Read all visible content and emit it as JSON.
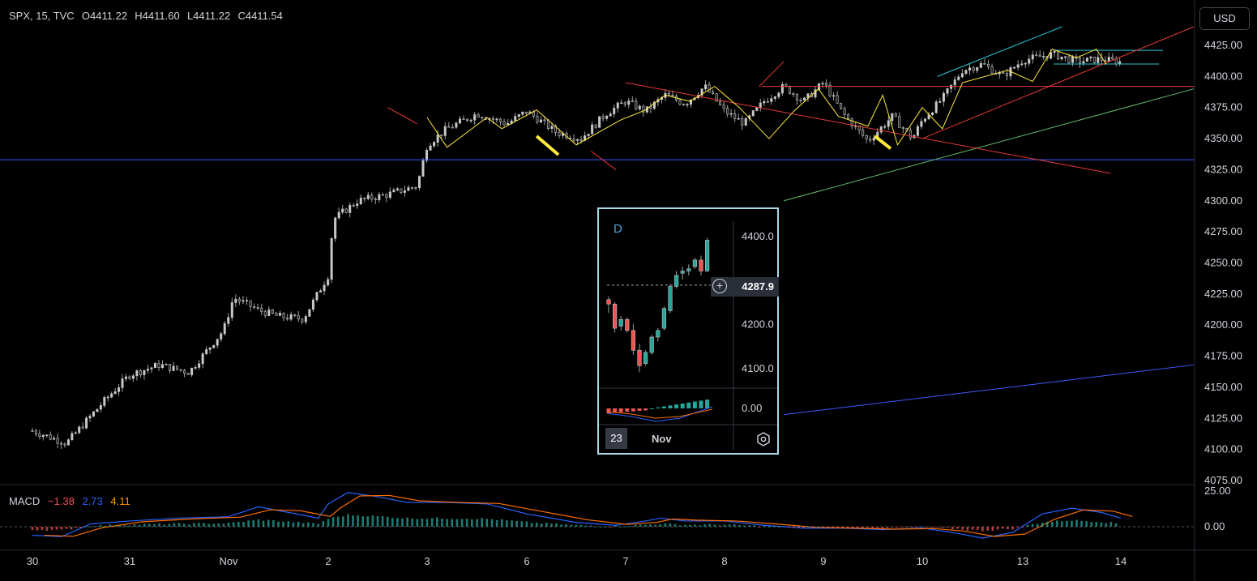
{
  "legend": {
    "symbol": "SPX, 15, TVC",
    "open": "O4411.22",
    "high": "H4411.60",
    "low": "L4411.22",
    "close": "C4411.54"
  },
  "currency_button": "USD",
  "macd_legend": {
    "name": "MACD",
    "hist": "−1.38",
    "macd": "2.73",
    "signal": "4.11"
  },
  "colors": {
    "bull": "#26a69a",
    "bear": "#ef5350",
    "candle_body_up": "#c8c8c8",
    "candle_body_down": "#202020",
    "cyan_line": "#26c6da",
    "yellow_line": "#ffeb3b",
    "red_line": "#e53935",
    "green_line": "#66bb6a",
    "blue_line": "#3d5afe",
    "macd_line": "#2962ff",
    "signal_line": "#ff6d00",
    "inset_border": "#a8dbe8"
  },
  "chart_data": [
    {
      "type": "candlestick",
      "price_axis_ticks": [
        "4425.00",
        "4400.00",
        "4375.00",
        "4350.00",
        "4325.00",
        "4300.00",
        "4275.00",
        "4250.00",
        "4225.00",
        "4200.00",
        "4175.00",
        "4150.00",
        "4125.00",
        "4100.00",
        "4075.00"
      ],
      "time_axis_ticks": [
        "30",
        "31",
        "Nov",
        "2",
        "3",
        "6",
        "7",
        "8",
        "9",
        "10",
        "13",
        "14"
      ],
      "ylim": [
        4075,
        4440
      ],
      "close_path": [
        {
          "t": 0.0,
          "p": 4115
        },
        {
          "t": 0.35,
          "p": 4105
        },
        {
          "t": 0.75,
          "p": 4140
        },
        {
          "t": 1.0,
          "p": 4160
        },
        {
          "t": 1.3,
          "p": 4168
        },
        {
          "t": 1.6,
          "p": 4162
        },
        {
          "t": 1.95,
          "p": 4196
        },
        {
          "t": 2.05,
          "p": 4222
        },
        {
          "t": 2.3,
          "p": 4212
        },
        {
          "t": 2.5,
          "p": 4207
        },
        {
          "t": 2.75,
          "p": 4205
        },
        {
          "t": 3.0,
          "p": 4240
        },
        {
          "t": 3.05,
          "p": 4285
        },
        {
          "t": 3.3,
          "p": 4300
        },
        {
          "t": 3.6,
          "p": 4305
        },
        {
          "t": 3.9,
          "p": 4312
        },
        {
          "t": 4.0,
          "p": 4345
        },
        {
          "t": 4.2,
          "p": 4358
        },
        {
          "t": 4.5,
          "p": 4370
        },
        {
          "t": 4.8,
          "p": 4362
        },
        {
          "t": 5.0,
          "p": 4372
        },
        {
          "t": 5.3,
          "p": 4355
        },
        {
          "t": 5.55,
          "p": 4350
        },
        {
          "t": 5.8,
          "p": 4370
        },
        {
          "t": 6.0,
          "p": 4380
        },
        {
          "t": 6.2,
          "p": 4372
        },
        {
          "t": 6.4,
          "p": 4385
        },
        {
          "t": 6.6,
          "p": 4378
        },
        {
          "t": 6.8,
          "p": 4392
        },
        {
          "t": 7.0,
          "p": 4372
        },
        {
          "t": 7.2,
          "p": 4362
        },
        {
          "t": 7.4,
          "p": 4380
        },
        {
          "t": 7.6,
          "p": 4392
        },
        {
          "t": 7.8,
          "p": 4380
        },
        {
          "t": 8.0,
          "p": 4395
        },
        {
          "t": 8.2,
          "p": 4370
        },
        {
          "t": 8.45,
          "p": 4348
        },
        {
          "t": 8.7,
          "p": 4368
        },
        {
          "t": 8.9,
          "p": 4350
        },
        {
          "t": 9.0,
          "p": 4365
        },
        {
          "t": 9.2,
          "p": 4382
        },
        {
          "t": 9.4,
          "p": 4405
        },
        {
          "t": 9.6,
          "p": 4410
        },
        {
          "t": 9.8,
          "p": 4400
        },
        {
          "t": 10.0,
          "p": 4413
        },
        {
          "t": 10.3,
          "p": 4418
        },
        {
          "t": 10.55,
          "p": 4412
        },
        {
          "t": 10.8,
          "p": 4414
        },
        {
          "t": 11.0,
          "p": 4411.54
        }
      ]
    },
    {
      "type": "line",
      "name": "MACD",
      "ylim": [
        -12,
        27
      ],
      "y_ticks": [
        "25.00",
        "0.00"
      ]
    },
    {
      "type": "candlestick",
      "interval": "D",
      "price_axis_ticks": [
        "4400.0",
        "4200.0",
        "4100.0",
        "0.00"
      ],
      "price_badge": "4287.9",
      "time_axis_ticks": [
        "23",
        "Nov"
      ],
      "ylim": [
        4040,
        4440
      ],
      "ohlc": [
        [
          4255,
          4262,
          4225,
          4245
        ],
        [
          4245,
          4250,
          4180,
          4190
        ],
        [
          4195,
          4218,
          4185,
          4210
        ],
        [
          4210,
          4215,
          4180,
          4185
        ],
        [
          4185,
          4200,
          4130,
          4140
        ],
        [
          4140,
          4155,
          4090,
          4105
        ],
        [
          4110,
          4140,
          4105,
          4135
        ],
        [
          4135,
          4175,
          4130,
          4170
        ],
        [
          4170,
          4190,
          4160,
          4185
        ],
        [
          4190,
          4240,
          4185,
          4235
        ],
        [
          4230,
          4290,
          4225,
          4285
        ],
        [
          4285,
          4320,
          4280,
          4310
        ],
        [
          4315,
          4330,
          4300,
          4320
        ],
        [
          4320,
          4335,
          4310,
          4325
        ],
        [
          4330,
          4350,
          4325,
          4345
        ],
        [
          4345,
          4355,
          4310,
          4320
        ],
        [
          4320,
          4395,
          4318,
          4390
        ]
      ]
    }
  ]
}
